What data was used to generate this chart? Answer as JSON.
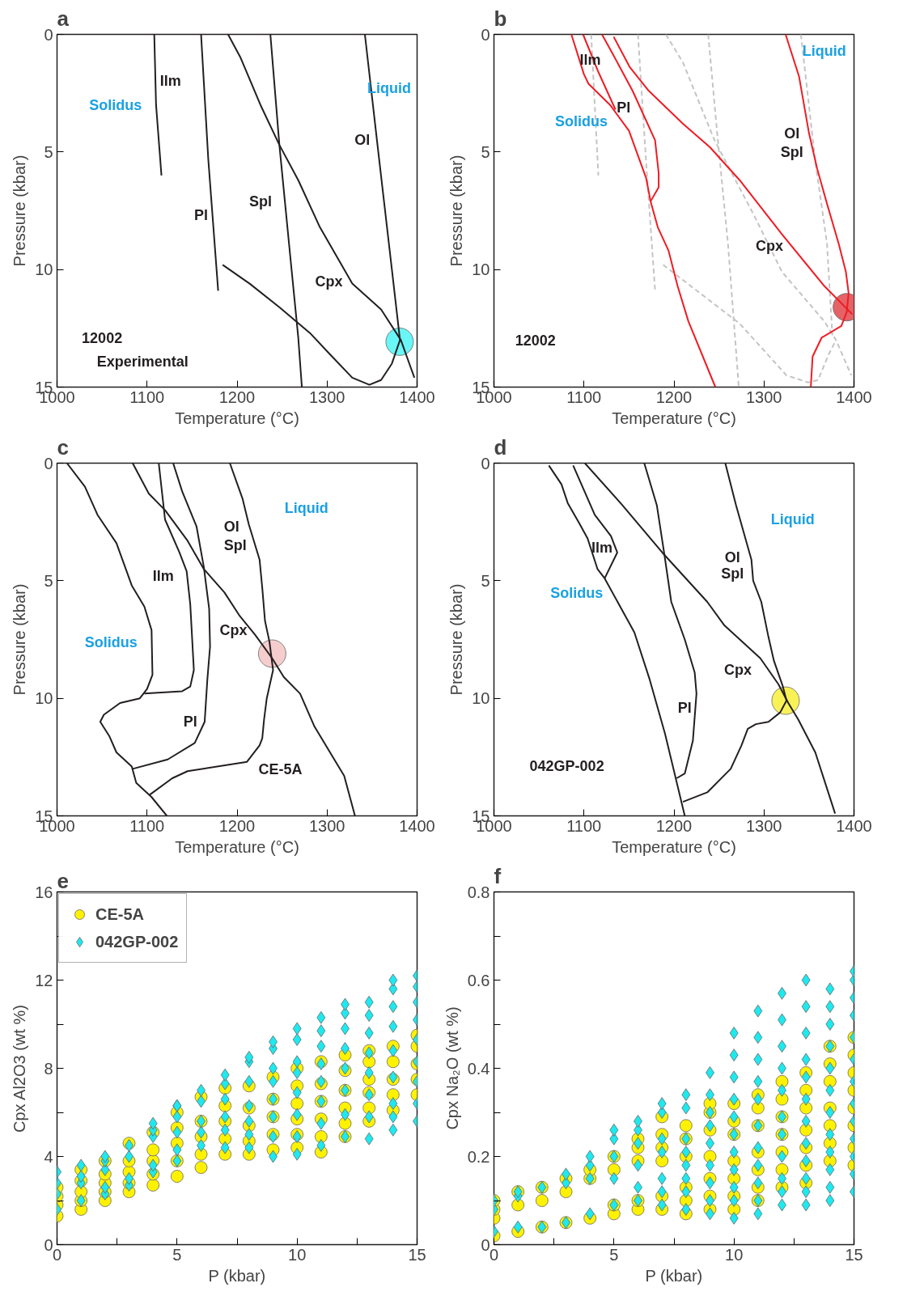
{
  "chart_data": [
    {
      "type": "line",
      "title": "a",
      "xlabel": "Temperature (°C)",
      "ylabel": "Pressure (kbar)",
      "xlim": [
        1000,
        1400
      ],
      "ylim": [
        15,
        0
      ],
      "xticks": [
        1000,
        1100,
        1200,
        1300,
        1400
      ],
      "yticks": [
        0,
        5,
        10,
        15
      ],
      "series": [
        {
          "type": "scatter",
          "color": "#4ff5f5",
          "x": [
            1380.6
          ],
          "values": [
            13.07
          ]
        },
        {
          "color": "#231f20",
          "x": [
            1108,
            1110,
            1116
          ],
          "values": [
            0,
            3,
            6
          ]
        },
        {
          "color": "#231f20",
          "x": [
            1160,
            1168,
            1179
          ],
          "values": [
            0,
            5.3,
            10.9
          ]
        },
        {
          "color": "#231f20",
          "x": [
            1190,
            1204,
            1226,
            1247,
            1268,
            1292,
            1328,
            1360,
            1382,
            1397
          ],
          "values": [
            0,
            1,
            3,
            4.7,
            6.2,
            8.2,
            10.6,
            11.7,
            13,
            14.6
          ]
        },
        {
          "color": "#231f20",
          "x": [
            1237,
            1247,
            1259,
            1268,
            1272
          ],
          "values": [
            0,
            4.7,
            9.4,
            12.9,
            15
          ]
        },
        {
          "color": "#231f20",
          "x": [
            1342,
            1356,
            1372,
            1381
          ],
          "values": [
            0,
            4.7,
            10,
            13
          ]
        },
        {
          "color": "#231f20",
          "x": [
            1184,
            1214,
            1247,
            1281,
            1303,
            1328,
            1347,
            1360,
            1372,
            1381
          ],
          "values": [
            9.8,
            10.6,
            11.6,
            12.7,
            13.6,
            14.6,
            14.9,
            14.7,
            14,
            13
          ]
        }
      ],
      "annotations": [
        "Ilm",
        "Solidus",
        "Liquid",
        "Ol",
        "Spl",
        "Pl",
        "Cpx",
        "12002",
        "Experimental"
      ]
    },
    {
      "type": "line",
      "title": "b",
      "xlabel": "Temperature (°C)",
      "ylabel": "Pressure (kbar)",
      "xlim": [
        1000,
        1400
      ],
      "ylim": [
        15,
        0
      ],
      "xticks": [
        1000,
        1100,
        1200,
        1300,
        1400
      ],
      "yticks": [
        0,
        5,
        10,
        15
      ],
      "series": [
        {
          "type": "scatter",
          "color": "#e0474c",
          "x": [
            1392
          ],
          "values": [
            11.6
          ]
        },
        {
          "color": "#c4c4c4",
          "line_style": "dashed",
          "x": [
            1108,
            1116
          ],
          "values": [
            0,
            6
          ]
        },
        {
          "color": "#c4c4c4",
          "line_style": "dashed",
          "x": [
            1160,
            1169,
            1179
          ],
          "values": [
            0,
            5.4,
            10.9
          ]
        },
        {
          "color": "#c4c4c4",
          "line_style": "dashed",
          "x": [
            1191,
            1210,
            1245,
            1289,
            1320,
            1367,
            1380,
            1397
          ],
          "values": [
            0,
            1.2,
            4.5,
            7.7,
            10.1,
            12.2,
            13,
            14.5
          ]
        },
        {
          "color": "#c4c4c4",
          "line_style": "dashed",
          "x": [
            1238,
            1248,
            1260,
            1272
          ],
          "values": [
            0,
            4.2,
            8.9,
            15
          ]
        },
        {
          "color": "#c4c4c4",
          "line_style": "dashed",
          "x": [
            1341,
            1357,
            1370,
            1376
          ],
          "values": [
            0,
            5.4,
            8.9,
            12.8
          ]
        },
        {
          "color": "#c4c4c4",
          "line_style": "dashed",
          "x": [
            1188,
            1273,
            1325,
            1349,
            1360,
            1372,
            1380
          ],
          "values": [
            9.8,
            12.3,
            14.5,
            14.8,
            14.7,
            13.6,
            13
          ]
        },
        {
          "color": "#ee1c24",
          "x": [
            1086,
            1100,
            1105,
            1129,
            1150,
            1169,
            1174,
            1182,
            1194,
            1204,
            1216,
            1246
          ],
          "values": [
            0,
            1.7,
            2.1,
            3,
            4.1,
            6.1,
            7.1,
            8.2,
            9.2,
            10.7,
            12.2,
            15
          ]
        },
        {
          "color": "#ee1c24",
          "x": [
            1099,
            1116,
            1135
          ],
          "values": [
            0,
            1.6,
            3.2
          ]
        },
        {
          "color": "#ee1c24",
          "x": [
            1120,
            1133,
            1154,
            1179,
            1183,
            1183,
            1174
          ],
          "values": [
            0,
            0.9,
            2.4,
            4.5,
            5.9,
            6.5,
            7.1
          ]
        },
        {
          "color": "#ee1c24",
          "x": [
            1133,
            1151,
            1172,
            1210,
            1240,
            1273,
            1320,
            1367,
            1398
          ],
          "values": [
            0.1,
            1.4,
            2.4,
            3.8,
            4.8,
            6.2,
            8.5,
            10.7,
            11.9
          ]
        },
        {
          "color": "#ee1c24",
          "x": [
            1324,
            1339,
            1350,
            1359,
            1370,
            1383,
            1391,
            1394,
            1392,
            1386,
            1364,
            1354,
            1352
          ],
          "values": [
            0,
            1.8,
            4.2,
            5.7,
            7.2,
            8.9,
            10.1,
            11,
            11.8,
            12.4,
            12.9,
            13.7,
            15
          ]
        }
      ],
      "annotations": [
        "Ilm",
        "Pl",
        "Solidus",
        "Liquid",
        "Ol",
        "Spl",
        "Cpx",
        "12002"
      ]
    },
    {
      "type": "line",
      "title": "c",
      "xlabel": "Temperature (°C)",
      "ylabel": "Pressure (kbar)",
      "xlim": [
        1000,
        1400
      ],
      "ylim": [
        15,
        0
      ],
      "xticks": [
        1000,
        1100,
        1200,
        1300,
        1400
      ],
      "yticks": [
        0,
        5,
        10,
        15
      ],
      "series": [
        {
          "type": "scatter",
          "color": "#f4c4c4",
          "x": [
            1239
          ],
          "values": [
            8.1
          ]
        },
        {
          "color": "#231f20",
          "x": [
            1011,
            1031,
            1045,
            1066,
            1083,
            1097,
            1105,
            1106,
            1100,
            1092,
            1070,
            1052,
            1048,
            1058,
            1066,
            1083,
            1088,
            1105,
            1122
          ],
          "values": [
            0,
            1,
            2.2,
            3.4,
            5.2,
            6.1,
            7.1,
            9,
            9.6,
            10,
            10.2,
            10.7,
            11,
            11.6,
            12.3,
            12.9,
            13.6,
            14.2,
            15
          ]
        },
        {
          "color": "#231f20",
          "x": [
            1084,
            1102,
            1120,
            1145,
            1163,
            1186,
            1203,
            1220,
            1239,
            1252,
            1270,
            1286,
            1308,
            1319,
            1331
          ],
          "values": [
            0,
            1.3,
            2,
            3.3,
            4.5,
            5.5,
            6.5,
            7.3,
            8.3,
            9.1,
            9.8,
            11.2,
            12.6,
            13.3,
            15
          ]
        },
        {
          "color": "#231f20",
          "x": [
            1113,
            1120,
            1136,
            1144,
            1148,
            1152,
            1148,
            1139,
            1097
          ],
          "values": [
            0,
            2.4,
            3.8,
            4.6,
            6,
            8.8,
            9.5,
            9.7,
            9.8
          ]
        },
        {
          "color": "#231f20",
          "x": [
            1129,
            1139,
            1155,
            1163,
            1169,
            1170,
            1167,
            1164,
            1153,
            1123,
            1084
          ],
          "values": [
            0,
            1.2,
            2.7,
            4.4,
            6.2,
            7.8,
            9.2,
            11,
            11.9,
            12.6,
            13
          ]
        },
        {
          "color": "#231f20",
          "x": [
            1192,
            1206,
            1213,
            1225,
            1228,
            1231,
            1236,
            1240,
            1233,
            1230,
            1228,
            1225,
            1211,
            1145,
            1128,
            1103
          ],
          "values": [
            0,
            1.5,
            2.6,
            4.1,
            5.3,
            6.7,
            7.6,
            8.8,
            10,
            10.9,
            11.7,
            12,
            12.7,
            13.1,
            13.4,
            14.1
          ]
        }
      ],
      "annotations": [
        "Liquid",
        "Ol",
        "Spl",
        "Ilm",
        "Cpx",
        "Solidus",
        "Pl",
        "CE-5A"
      ]
    },
    {
      "type": "line",
      "title": "d",
      "xlabel": "Temperature (°C)",
      "ylabel": "Pressure (kbar)",
      "xlim": [
        1000,
        1400
      ],
      "ylim": [
        15,
        0
      ],
      "xticks": [
        1000,
        1100,
        1200,
        1300,
        1400
      ],
      "yticks": [
        0,
        5,
        10,
        15
      ],
      "series": [
        {
          "type": "scatter",
          "color": "#f8f03a",
          "x": [
            1324
          ],
          "values": [
            10.1
          ]
        },
        {
          "color": "#231f20",
          "x": [
            1061,
            1075,
            1082,
            1094,
            1104,
            1115,
            1123,
            1146,
            1156,
            1173,
            1190,
            1212
          ],
          "values": [
            0.1,
            0.9,
            1.7,
            2.5,
            3.2,
            4.5,
            4.9,
            6.5,
            7.2,
            9.2,
            11.5,
            15
          ]
        },
        {
          "color": "#231f20",
          "x": [
            1088,
            1112,
            1130,
            1137,
            1123
          ],
          "values": [
            0.1,
            2.2,
            3.1,
            3.8,
            4.9
          ]
        },
        {
          "color": "#231f20",
          "x": [
            1101,
            1143,
            1187,
            1237,
            1256,
            1296,
            1316,
            1327,
            1338,
            1357,
            1379
          ],
          "values": [
            0,
            1.8,
            3.8,
            5.9,
            6.9,
            8.3,
            9.4,
            10.2,
            10.9,
            12.3,
            14.9
          ]
        },
        {
          "color": "#231f20",
          "x": [
            1167,
            1181,
            1189,
            1197,
            1212,
            1223,
            1225,
            1221,
            1212,
            1203
          ],
          "values": [
            0,
            1.8,
            3.8,
            5.9,
            7.5,
            8.9,
            9.8,
            11.8,
            13.2,
            13.4
          ]
        },
        {
          "color": "#231f20",
          "x": [
            1257,
            1269,
            1286,
            1288,
            1297,
            1305,
            1311,
            1321,
            1325,
            1318,
            1305,
            1291,
            1282,
            1275,
            1263,
            1237,
            1210
          ],
          "values": [
            0,
            1.8,
            4.1,
            5,
            5.9,
            7.4,
            8.4,
            9.5,
            10.1,
            10.6,
            11,
            11.1,
            11.3,
            12,
            13,
            14,
            14.4
          ]
        }
      ],
      "annotations": [
        "Liquid",
        "Ol",
        "Spl",
        "Ilm",
        "Solidus",
        "Cpx",
        "Pl",
        "042GP-002"
      ]
    },
    {
      "type": "scatter",
      "title": "e",
      "xlabel": "P (kbar)",
      "ylabel": "Cpx Al2O3 (wt %)",
      "xlim": [
        0,
        15
      ],
      "ylim": [
        0,
        16
      ],
      "legend": "top left",
      "xticks": [
        0,
        {
          "value": 2.5,
          "label": null
        },
        5,
        {
          "value": 7.5,
          "label": null
        },
        10,
        {
          "value": 12.5,
          "label": null
        },
        15
      ],
      "yticks": [
        0,
        {
          "value": 2,
          "label": null
        },
        4,
        {
          "value": 6,
          "label": null
        },
        8,
        {
          "value": 10,
          "label": null
        },
        12,
        {
          "value": 14,
          "label": null
        },
        16
      ],
      "series": [
        {
          "name": "CE-5A",
          "color": "#fff200",
          "marker": "circle",
          "x": [
            0,
            0,
            0,
            0,
            1,
            1,
            1,
            1,
            1,
            2,
            2,
            2,
            2,
            2,
            3,
            3,
            3,
            3,
            3,
            4,
            4,
            4,
            4,
            4,
            5,
            5,
            5,
            5,
            5,
            6,
            6,
            6,
            6,
            6,
            7,
            7,
            7,
            7,
            7,
            8,
            8,
            8,
            8,
            8,
            9,
            9,
            9,
            9,
            9,
            10,
            10,
            10,
            10,
            10,
            10,
            11,
            11,
            11,
            11,
            11,
            11,
            12,
            12,
            12,
            12,
            12,
            12,
            13,
            13,
            13,
            13,
            13,
            13,
            14,
            14,
            14,
            14,
            14,
            15,
            15,
            15,
            15,
            15
          ],
          "values": [
            1.3,
            1.8,
            2.2,
            2.6,
            1.6,
            2.0,
            2.4,
            2.9,
            3.4,
            2.0,
            2.4,
            2.8,
            3.2,
            3.8,
            2.4,
            2.8,
            3.3,
            3.8,
            4.6,
            2.7,
            3.2,
            3.8,
            4.3,
            5.1,
            3.1,
            3.8,
            4.6,
            5.3,
            6.0,
            3.5,
            4.1,
            4.9,
            5.6,
            6.7,
            4.1,
            4.8,
            5.6,
            6.3,
            7.1,
            4.1,
            4.7,
            5.4,
            6.2,
            7.2,
            4.3,
            5.0,
            5.8,
            6.6,
            7.6,
            4.4,
            5.0,
            5.7,
            6.4,
            7.2,
            8.0,
            4.2,
            4.9,
            5.7,
            6.5,
            7.3,
            8.3,
            4.9,
            5.5,
            6.2,
            7.0,
            7.9,
            8.6,
            5.6,
            6.2,
            6.9,
            7.5,
            8.3,
            8.8,
            6.1,
            6.8,
            7.5,
            8.3,
            9.0,
            6.8,
            7.5,
            8.2,
            9.0,
            9.5
          ]
        },
        {
          "name": "042GP-002",
          "color": "#1de9ef",
          "marker": "diamond",
          "x": [
            0,
            0,
            0,
            0,
            1,
            1,
            1,
            1,
            2,
            2,
            2,
            2,
            2,
            3,
            3,
            3,
            3,
            4,
            4,
            4,
            4,
            4,
            5,
            5,
            5,
            5,
            5,
            5,
            6,
            6,
            6,
            6,
            6,
            7,
            7,
            7,
            7,
            7,
            7,
            8,
            8,
            8,
            8,
            8,
            8,
            8,
            9,
            9,
            9,
            9,
            9,
            9,
            9,
            9,
            10,
            10,
            10,
            10,
            10,
            10,
            10,
            10,
            11,
            11,
            11,
            11,
            11,
            11,
            11,
            11,
            12,
            12,
            12,
            12,
            12,
            12,
            12,
            12,
            13,
            13,
            13,
            13,
            13,
            13,
            13,
            13,
            14,
            14,
            14,
            14,
            14,
            14,
            14,
            14,
            14,
            15,
            15,
            15,
            15,
            15,
            15,
            15,
            15,
            15
          ],
          "values": [
            1.6,
            2.3,
            2.8,
            3.3,
            2.0,
            2.8,
            3.1,
            3.6,
            2.3,
            2.6,
            3.4,
            3.8,
            4.0,
            2.7,
            3.0,
            4.0,
            4.5,
            3.3,
            3.6,
            4.9,
            5.2,
            5.5,
            3.8,
            4.3,
            5.1,
            5.8,
            6.3,
            6.3,
            4.5,
            5.1,
            5.6,
            6.5,
            7.0,
            4.4,
            5.2,
            5.8,
            6.6,
            7.3,
            7.7,
            4.4,
            5.0,
            5.6,
            6.3,
            7.4,
            8.3,
            8.5,
            4.0,
            4.9,
            5.8,
            6.6,
            7.4,
            8.0,
            8.9,
            9.2,
            4.1,
            4.9,
            5.9,
            6.9,
            7.8,
            8.3,
            9.3,
            9.8,
            4.5,
            5.5,
            6.5,
            7.4,
            8.2,
            9.0,
            9.7,
            10.3,
            4.9,
            5.9,
            7.0,
            8.0,
            8.9,
            9.8,
            10.5,
            10.9,
            4.8,
            5.8,
            6.8,
            7.8,
            8.7,
            9.6,
            10.4,
            11.0,
            5.2,
            5.8,
            6.4,
            7.6,
            8.8,
            9.9,
            10.8,
            11.6,
            12.0,
            5.6,
            6.4,
            7.4,
            8.3,
            9.3,
            10.2,
            11.0,
            11.7,
            12.2
          ]
        }
      ]
    },
    {
      "type": "scatter",
      "title": "f",
      "xlabel": "P (kbar)",
      "ylabel": "Cpx Na₂O (wt %)",
      "xlim": [
        0,
        15
      ],
      "ylim": [
        0,
        0.8
      ],
      "xticks": [
        0,
        {
          "value": 2.5,
          "label": null
        },
        5,
        {
          "value": 7.5,
          "label": null
        },
        10,
        {
          "value": 12.5,
          "label": null
        },
        15
      ],
      "yticks": [
        0,
        {
          "value": 0.1,
          "label": null
        },
        0.2,
        {
          "value": 0.3,
          "label": null
        },
        0.4,
        {
          "value": 0.5,
          "label": null
        },
        0.6,
        {
          "value": 0.7,
          "label": null
        },
        0.8
      ],
      "series": [
        {
          "color": "#fff200",
          "marker": "circle",
          "x": [
            0,
            0,
            0,
            0,
            1,
            1,
            1,
            2,
            2,
            2,
            3,
            3,
            3,
            4,
            4,
            4,
            5,
            5,
            5,
            5,
            6,
            6,
            6,
            6,
            6,
            7,
            7,
            7,
            7,
            7,
            7,
            8,
            8,
            8,
            8,
            8,
            8,
            9,
            9,
            9,
            9,
            9,
            9,
            9,
            10,
            10,
            10,
            10,
            10,
            10,
            10,
            11,
            11,
            11,
            11,
            11,
            11,
            11,
            12,
            12,
            12,
            12,
            12,
            12,
            12,
            13,
            13,
            13,
            13,
            13,
            13,
            13,
            14,
            14,
            14,
            14,
            14,
            14,
            14,
            15,
            15,
            15,
            15,
            15,
            15,
            15,
            15
          ],
          "values": [
            0.02,
            0.06,
            0.08,
            0.1,
            0.03,
            0.09,
            0.12,
            0.04,
            0.1,
            0.13,
            0.05,
            0.12,
            0.15,
            0.06,
            0.15,
            0.17,
            0.07,
            0.09,
            0.17,
            0.2,
            0.08,
            0.1,
            0.19,
            0.22,
            0.24,
            0.08,
            0.11,
            0.19,
            0.22,
            0.25,
            0.29,
            0.07,
            0.1,
            0.13,
            0.2,
            0.24,
            0.27,
            0.08,
            0.11,
            0.15,
            0.2,
            0.26,
            0.3,
            0.32,
            0.08,
            0.11,
            0.15,
            0.19,
            0.25,
            0.28,
            0.32,
            0.1,
            0.13,
            0.17,
            0.21,
            0.27,
            0.31,
            0.34,
            0.13,
            0.17,
            0.21,
            0.25,
            0.29,
            0.33,
            0.37,
            0.14,
            0.18,
            0.22,
            0.26,
            0.31,
            0.35,
            0.39,
            0.19,
            0.23,
            0.27,
            0.31,
            0.37,
            0.41,
            0.45,
            0.18,
            0.22,
            0.27,
            0.31,
            0.35,
            0.39,
            0.43,
            0.47
          ]
        },
        {
          "color": "#1de9ef",
          "marker": "diamond",
          "x": [
            0,
            0,
            0,
            1,
            1,
            1,
            2,
            2,
            3,
            3,
            3,
            4,
            4,
            4,
            4,
            5,
            5,
            5,
            5,
            5,
            6,
            6,
            6,
            6,
            6,
            6,
            7,
            7,
            7,
            7,
            7,
            7,
            7,
            8,
            8,
            8,
            8,
            8,
            8,
            8,
            8,
            9,
            9,
            9,
            9,
            9,
            9,
            9,
            9,
            9,
            10,
            10,
            10,
            10,
            10,
            10,
            10,
            10,
            10,
            10,
            10,
            11,
            11,
            11,
            11,
            11,
            11,
            11,
            11,
            11,
            11,
            11,
            12,
            12,
            12,
            12,
            12,
            12,
            12,
            12,
            12,
            12,
            12,
            13,
            13,
            13,
            13,
            13,
            13,
            13,
            13,
            13,
            13,
            13,
            13,
            14,
            14,
            14,
            14,
            14,
            14,
            14,
            14,
            14,
            14,
            14,
            14,
            15,
            15,
            15,
            15,
            15,
            15,
            15,
            15,
            15,
            15,
            15,
            15,
            15
          ],
          "values": [
            0.03,
            0.08,
            0.1,
            0.04,
            0.11,
            0.12,
            0.04,
            0.13,
            0.05,
            0.14,
            0.16,
            0.07,
            0.15,
            0.18,
            0.2,
            0.09,
            0.15,
            0.2,
            0.24,
            0.26,
            0.1,
            0.13,
            0.18,
            0.23,
            0.26,
            0.28,
            0.09,
            0.12,
            0.15,
            0.21,
            0.24,
            0.3,
            0.32,
            0.08,
            0.12,
            0.15,
            0.18,
            0.21,
            0.24,
            0.31,
            0.34,
            0.07,
            0.1,
            0.14,
            0.18,
            0.23,
            0.27,
            0.3,
            0.34,
            0.39,
            0.06,
            0.1,
            0.13,
            0.17,
            0.21,
            0.25,
            0.29,
            0.33,
            0.38,
            0.43,
            0.48,
            0.07,
            0.1,
            0.14,
            0.18,
            0.22,
            0.27,
            0.33,
            0.37,
            0.42,
            0.47,
            0.53,
            0.09,
            0.12,
            0.15,
            0.2,
            0.25,
            0.29,
            0.35,
            0.4,
            0.45,
            0.51,
            0.57,
            0.09,
            0.12,
            0.15,
            0.19,
            0.23,
            0.28,
            0.33,
            0.38,
            0.42,
            0.48,
            0.54,
            0.6,
            0.1,
            0.13,
            0.17,
            0.21,
            0.25,
            0.3,
            0.35,
            0.4,
            0.45,
            0.5,
            0.54,
            0.58,
            0.12,
            0.16,
            0.2,
            0.24,
            0.28,
            0.32,
            0.37,
            0.42,
            0.47,
            0.52,
            0.56,
            0.6,
            0.62
          ]
        }
      ]
    }
  ]
}
